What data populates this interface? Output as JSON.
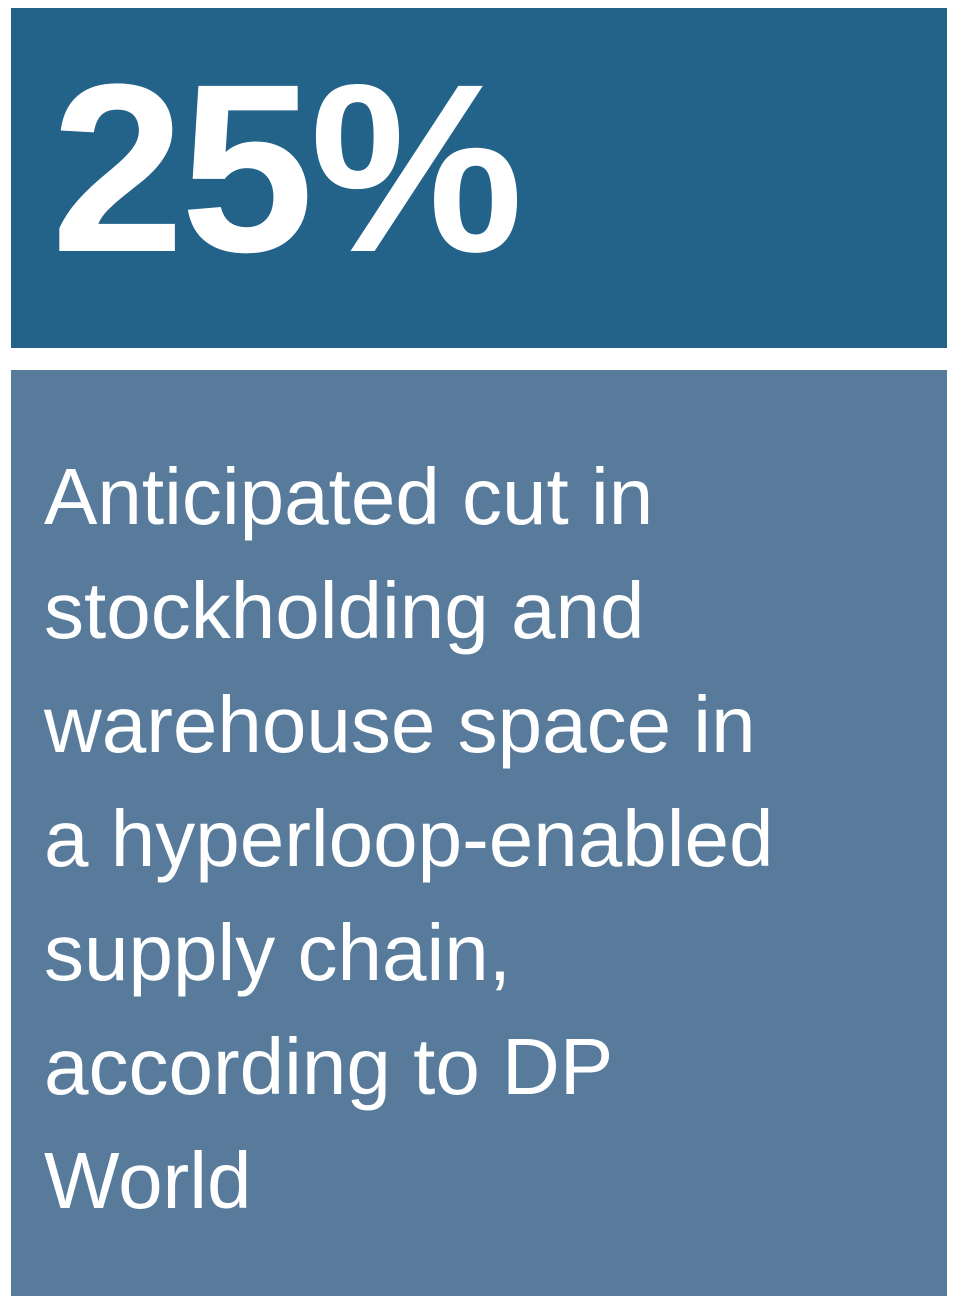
{
  "stat": "25%",
  "description": [
    "Anticipated cut in",
    "stockholding and",
    "warehouse space in",
    "a hyperloop-enabled",
    "supply chain,",
    "according to DP",
    "World"
  ]
}
